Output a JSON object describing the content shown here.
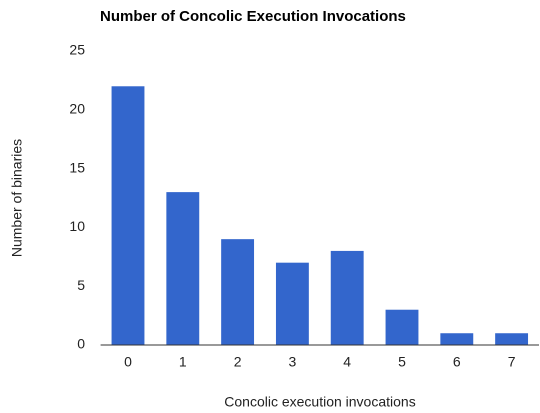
{
  "chart_data": {
    "type": "bar",
    "title": "Number of Concolic Execution Invocations",
    "x_label": "Concolic execution invocations",
    "y_label": "Number of binaries",
    "categories": [
      "0",
      "1",
      "2",
      "3",
      "4",
      "5",
      "6",
      "7"
    ],
    "values": [
      22,
      13,
      9,
      7,
      8,
      3,
      1,
      1
    ],
    "color": "#3366cc",
    "ylim": [
      0,
      25
    ],
    "yticks": [
      0,
      5,
      10,
      15,
      20,
      25
    ],
    "grid": false
  }
}
